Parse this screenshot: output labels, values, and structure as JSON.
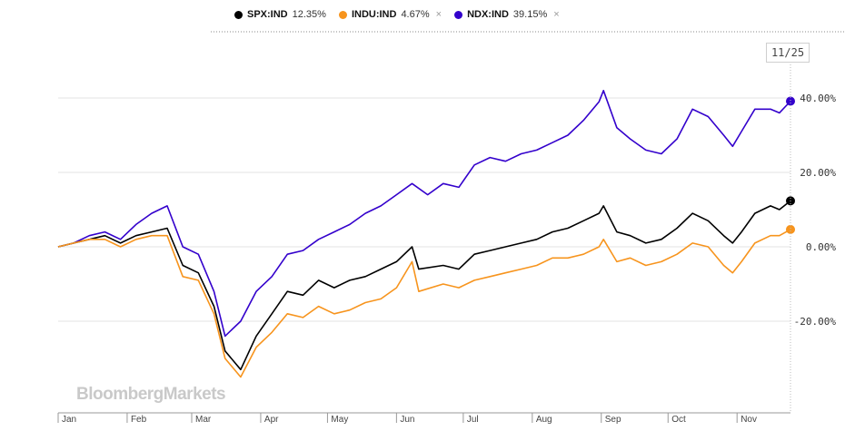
{
  "legend": [
    {
      "name": "SPX:IND",
      "change": "12.35%",
      "color": "#000000",
      "removable": false
    },
    {
      "name": "INDU:IND",
      "change": "4.67%",
      "color": "#f7941d",
      "removable": true
    },
    {
      "name": "NDX:IND",
      "change": "39.15%",
      "color": "#3300cc",
      "removable": true
    }
  ],
  "remove_symbol": "×",
  "date_badge": "11/25",
  "watermark": "BloombergMarkets",
  "chart_data": {
    "type": "line",
    "title": "",
    "xlabel": "",
    "ylabel": "",
    "ylim": [
      -40,
      50
    ],
    "y_ticks": [
      40,
      20,
      0,
      -20
    ],
    "y_tick_labels": [
      "40.00%",
      "20.00%",
      "0.00%",
      "-20.00%"
    ],
    "x_tick_labels": [
      "Jan",
      "Feb",
      "Mar",
      "Apr",
      "May",
      "Jun",
      "Jul",
      "Aug",
      "Sep",
      "Oct",
      "Nov"
    ],
    "x_tick_dates": [
      "2020-01-01",
      "2020-02-01",
      "2020-03-01",
      "2020-04-01",
      "2020-05-01",
      "2020-06-01",
      "2020-07-01",
      "2020-08-01",
      "2020-09-01",
      "2020-10-01",
      "2020-11-01"
    ],
    "x_range": [
      "2020-01-01",
      "2020-11-25"
    ],
    "grid": "horizontal",
    "series": [
      {
        "name": "NDX:IND",
        "color": "#3300cc",
        "points": [
          [
            "2020-01-01",
            0
          ],
          [
            "2020-01-08",
            1
          ],
          [
            "2020-01-15",
            3
          ],
          [
            "2020-01-22",
            4
          ],
          [
            "2020-01-29",
            2
          ],
          [
            "2020-02-05",
            6
          ],
          [
            "2020-02-12",
            9
          ],
          [
            "2020-02-19",
            11
          ],
          [
            "2020-02-26",
            0
          ],
          [
            "2020-03-04",
            -2
          ],
          [
            "2020-03-11",
            -12
          ],
          [
            "2020-03-16",
            -24
          ],
          [
            "2020-03-23",
            -20
          ],
          [
            "2020-03-30",
            -12
          ],
          [
            "2020-04-06",
            -8
          ],
          [
            "2020-04-13",
            -2
          ],
          [
            "2020-04-20",
            -1
          ],
          [
            "2020-04-27",
            2
          ],
          [
            "2020-05-04",
            4
          ],
          [
            "2020-05-11",
            6
          ],
          [
            "2020-05-18",
            9
          ],
          [
            "2020-05-25",
            11
          ],
          [
            "2020-06-01",
            14
          ],
          [
            "2020-06-08",
            17
          ],
          [
            "2020-06-15",
            14
          ],
          [
            "2020-06-22",
            17
          ],
          [
            "2020-06-29",
            16
          ],
          [
            "2020-07-06",
            22
          ],
          [
            "2020-07-13",
            24
          ],
          [
            "2020-07-20",
            23
          ],
          [
            "2020-07-27",
            25
          ],
          [
            "2020-08-03",
            26
          ],
          [
            "2020-08-10",
            28
          ],
          [
            "2020-08-17",
            30
          ],
          [
            "2020-08-24",
            34
          ],
          [
            "2020-08-31",
            39
          ],
          [
            "2020-09-02",
            42
          ],
          [
            "2020-09-08",
            32
          ],
          [
            "2020-09-14",
            29
          ],
          [
            "2020-09-21",
            26
          ],
          [
            "2020-09-28",
            25
          ],
          [
            "2020-10-05",
            29
          ],
          [
            "2020-10-12",
            37
          ],
          [
            "2020-10-19",
            35
          ],
          [
            "2020-10-26",
            30
          ],
          [
            "2020-10-30",
            27
          ],
          [
            "2020-11-03",
            31
          ],
          [
            "2020-11-09",
            37
          ],
          [
            "2020-11-16",
            37
          ],
          [
            "2020-11-20",
            36
          ],
          [
            "2020-11-25",
            39.15
          ]
        ]
      },
      {
        "name": "SPX:IND",
        "color": "#000000",
        "points": [
          [
            "2020-01-01",
            0
          ],
          [
            "2020-01-08",
            1
          ],
          [
            "2020-01-15",
            2
          ],
          [
            "2020-01-22",
            3
          ],
          [
            "2020-01-29",
            1
          ],
          [
            "2020-02-05",
            3
          ],
          [
            "2020-02-12",
            4
          ],
          [
            "2020-02-19",
            5
          ],
          [
            "2020-02-26",
            -5
          ],
          [
            "2020-03-04",
            -7
          ],
          [
            "2020-03-11",
            -16
          ],
          [
            "2020-03-16",
            -28
          ],
          [
            "2020-03-23",
            -33
          ],
          [
            "2020-03-30",
            -24
          ],
          [
            "2020-04-06",
            -18
          ],
          [
            "2020-04-13",
            -12
          ],
          [
            "2020-04-20",
            -13
          ],
          [
            "2020-04-27",
            -9
          ],
          [
            "2020-05-04",
            -11
          ],
          [
            "2020-05-11",
            -9
          ],
          [
            "2020-05-18",
            -8
          ],
          [
            "2020-05-25",
            -6
          ],
          [
            "2020-06-01",
            -4
          ],
          [
            "2020-06-08",
            0
          ],
          [
            "2020-06-11",
            -6
          ],
          [
            "2020-06-22",
            -5
          ],
          [
            "2020-06-29",
            -6
          ],
          [
            "2020-07-06",
            -2
          ],
          [
            "2020-07-13",
            -1
          ],
          [
            "2020-07-20",
            0
          ],
          [
            "2020-07-27",
            1
          ],
          [
            "2020-08-03",
            2
          ],
          [
            "2020-08-10",
            4
          ],
          [
            "2020-08-17",
            5
          ],
          [
            "2020-08-24",
            7
          ],
          [
            "2020-08-31",
            9
          ],
          [
            "2020-09-02",
            11
          ],
          [
            "2020-09-08",
            4
          ],
          [
            "2020-09-14",
            3
          ],
          [
            "2020-09-21",
            1
          ],
          [
            "2020-09-28",
            2
          ],
          [
            "2020-10-05",
            5
          ],
          [
            "2020-10-12",
            9
          ],
          [
            "2020-10-19",
            7
          ],
          [
            "2020-10-26",
            3
          ],
          [
            "2020-10-30",
            1
          ],
          [
            "2020-11-03",
            4
          ],
          [
            "2020-11-09",
            9
          ],
          [
            "2020-11-16",
            11
          ],
          [
            "2020-11-20",
            10
          ],
          [
            "2020-11-25",
            12.35
          ]
        ]
      },
      {
        "name": "INDU:IND",
        "color": "#f7941d",
        "points": [
          [
            "2020-01-01",
            0
          ],
          [
            "2020-01-08",
            1
          ],
          [
            "2020-01-15",
            2
          ],
          [
            "2020-01-22",
            2
          ],
          [
            "2020-01-29",
            0
          ],
          [
            "2020-02-05",
            2
          ],
          [
            "2020-02-12",
            3
          ],
          [
            "2020-02-19",
            3
          ],
          [
            "2020-02-26",
            -8
          ],
          [
            "2020-03-04",
            -9
          ],
          [
            "2020-03-11",
            -18
          ],
          [
            "2020-03-16",
            -30
          ],
          [
            "2020-03-23",
            -35
          ],
          [
            "2020-03-30",
            -27
          ],
          [
            "2020-04-06",
            -23
          ],
          [
            "2020-04-13",
            -18
          ],
          [
            "2020-04-20",
            -19
          ],
          [
            "2020-04-27",
            -16
          ],
          [
            "2020-05-04",
            -18
          ],
          [
            "2020-05-11",
            -17
          ],
          [
            "2020-05-18",
            -15
          ],
          [
            "2020-05-25",
            -14
          ],
          [
            "2020-06-01",
            -11
          ],
          [
            "2020-06-08",
            -4
          ],
          [
            "2020-06-11",
            -12
          ],
          [
            "2020-06-22",
            -10
          ],
          [
            "2020-06-29",
            -11
          ],
          [
            "2020-07-06",
            -9
          ],
          [
            "2020-07-13",
            -8
          ],
          [
            "2020-07-20",
            -7
          ],
          [
            "2020-07-27",
            -6
          ],
          [
            "2020-08-03",
            -5
          ],
          [
            "2020-08-10",
            -3
          ],
          [
            "2020-08-17",
            -3
          ],
          [
            "2020-08-24",
            -2
          ],
          [
            "2020-08-31",
            0
          ],
          [
            "2020-09-02",
            2
          ],
          [
            "2020-09-08",
            -4
          ],
          [
            "2020-09-14",
            -3
          ],
          [
            "2020-09-21",
            -5
          ],
          [
            "2020-09-28",
            -4
          ],
          [
            "2020-10-05",
            -2
          ],
          [
            "2020-10-12",
            1
          ],
          [
            "2020-10-19",
            0
          ],
          [
            "2020-10-26",
            -5
          ],
          [
            "2020-10-30",
            -7
          ],
          [
            "2020-11-03",
            -4
          ],
          [
            "2020-11-09",
            1
          ],
          [
            "2020-11-16",
            3
          ],
          [
            "2020-11-20",
            3
          ],
          [
            "2020-11-25",
            4.67
          ]
        ]
      }
    ]
  }
}
